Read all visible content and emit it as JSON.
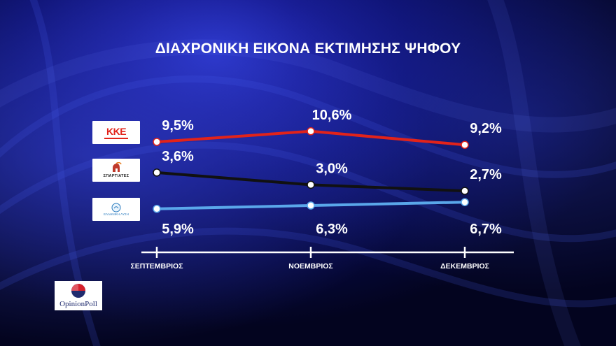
{
  "title": "ΔΙΑΧΡΟΝΙΚΗ ΕΙΚΟΝΑ ΕΚΤΙΜΗΣΗΣ ΨΗΦΟΥ",
  "logos": {
    "kke_text": "ΚΚΕ",
    "spartiates_caption": "ΣΠΑΡΤΙΑΤΕΣ",
    "elliniki_lysi_caption": "ΕΛΛΗΝΙΚΗ ΛΥΣΗ",
    "pollster": "OpinionPoll"
  },
  "colors": {
    "kke": "#e2231a",
    "spartiates": "#111111",
    "elliniki_lysi": "#5aa7ea",
    "axis": "#ffffff"
  },
  "chart_data": {
    "type": "line",
    "title": "ΔΙΑΧΡΟΝΙΚΗ ΕΙΚΟΝΑ ΕΚΤΙΜΗΣΗΣ ΨΗΦΟΥ",
    "categories": [
      "ΣΕΠΤΕΜΒΡΙΟΣ",
      "ΝΟΕΜΒΡΙΟΣ",
      "ΔΕΚΕΜΒΡΙΟΣ"
    ],
    "series": [
      {
        "key": "kke",
        "values": [
          9.5,
          10.6,
          9.2
        ],
        "labels": [
          "9,5%",
          "10,6%",
          "9,2%"
        ],
        "label_position": "above"
      },
      {
        "key": "spartiates",
        "values": [
          3.6,
          3.0,
          2.7
        ],
        "labels": [
          "3,6%",
          "3,0%",
          "2,7%"
        ],
        "label_position": "above"
      },
      {
        "key": "elliniki_lysi",
        "values": [
          5.9,
          6.3,
          6.7
        ],
        "labels": [
          "5,9%",
          "6,3%",
          "6,7%"
        ],
        "label_position": "below"
      }
    ],
    "legend": "logos on left",
    "grid": false
  }
}
